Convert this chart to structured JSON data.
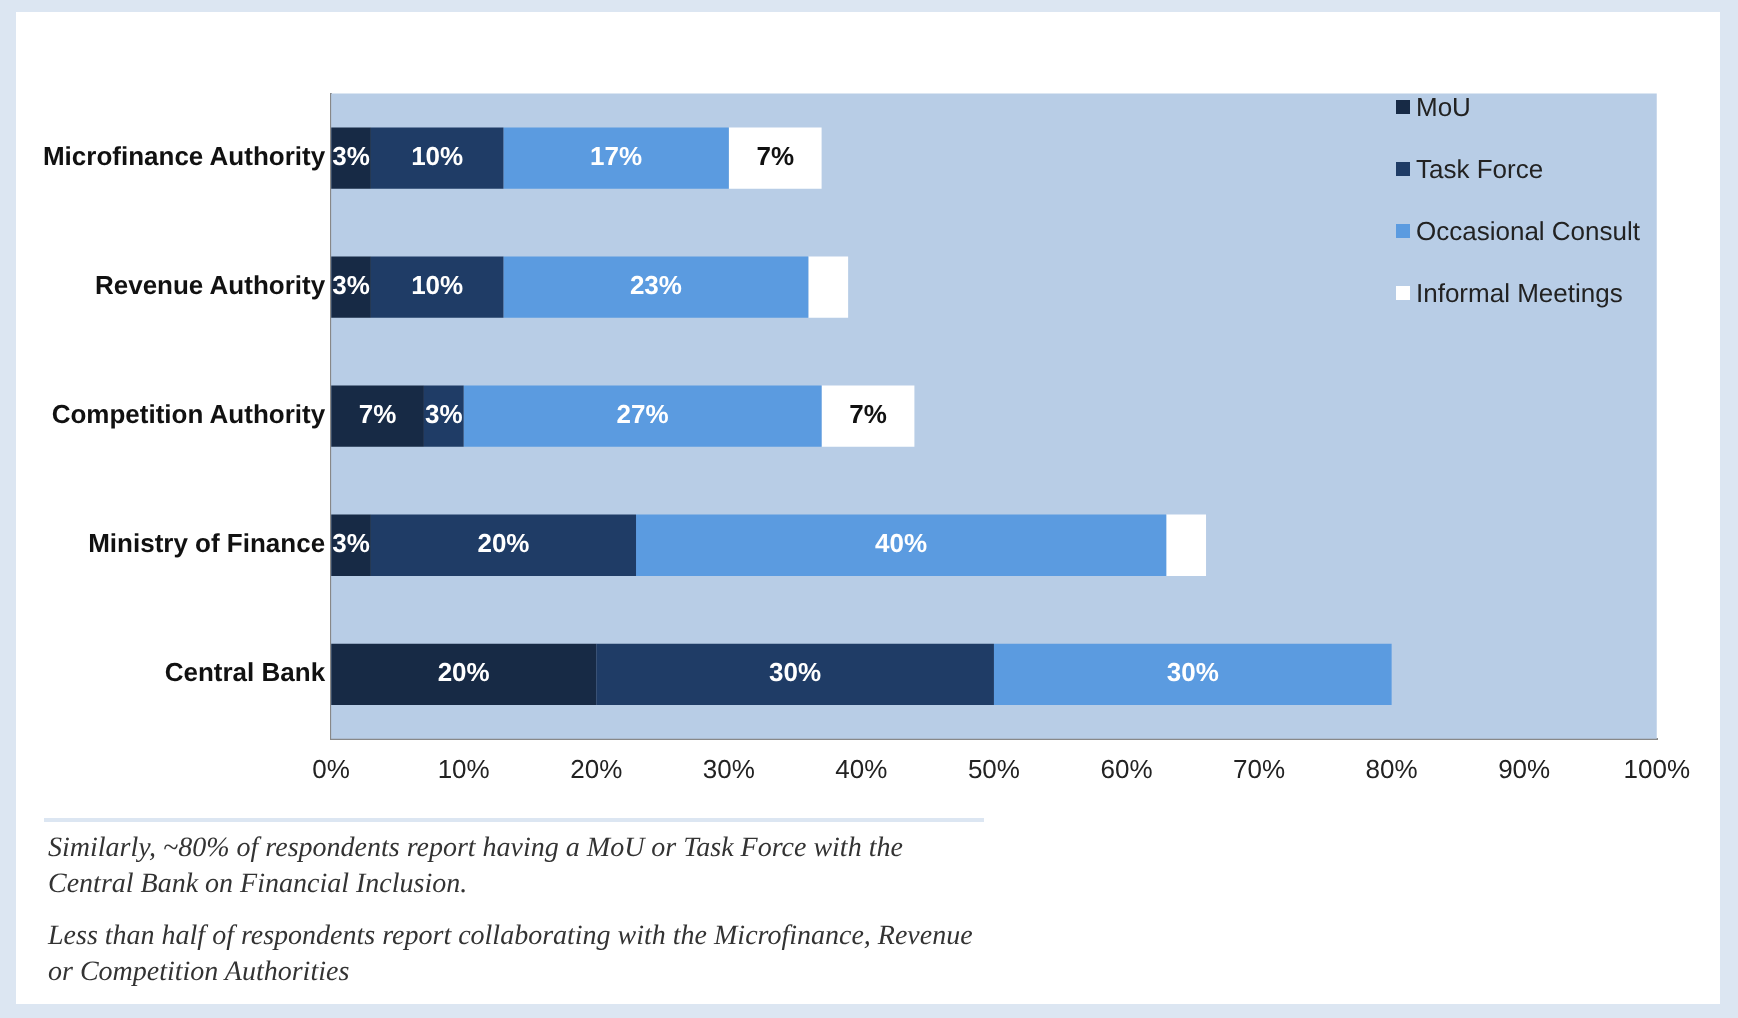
{
  "chart_data": {
    "type": "bar",
    "orientation": "horizontal",
    "stacked": true,
    "categories": [
      "Microfinance Authority",
      "Revenue Authority",
      "Competition Authority",
      "Ministry of Finance",
      "Central Bank"
    ],
    "series": [
      {
        "name": "MoU",
        "color": "#172a45",
        "values": [
          3,
          3,
          7,
          3,
          20
        ],
        "value_labels": [
          "3%",
          "3%",
          "7%",
          "3%",
          "20%"
        ]
      },
      {
        "name": "Task Force",
        "color": "#1f3c66",
        "values": [
          10,
          10,
          3,
          20,
          30
        ],
        "value_labels": [
          "10%",
          "10%",
          "3%",
          "20%",
          "30%"
        ]
      },
      {
        "name": "Occasional Consult",
        "color": "#5b9be0",
        "values": [
          17,
          23,
          27,
          40,
          30
        ],
        "value_labels": [
          "17%",
          "23%",
          "27%",
          "40%",
          "30%"
        ]
      },
      {
        "name": "Informal Meetings",
        "color": "#ffffff",
        "values": [
          7,
          3,
          7,
          3,
          0
        ],
        "value_labels": [
          "7%",
          null,
          "7%",
          null,
          null
        ]
      }
    ],
    "xlim": [
      0,
      100
    ],
    "xticks": [
      {
        "value": 0,
        "label": "0%"
      },
      {
        "value": 10,
        "label": "10%"
      },
      {
        "value": 20,
        "label": "20%"
      },
      {
        "value": 30,
        "label": "30%"
      },
      {
        "value": 40,
        "label": "40%"
      },
      {
        "value": 50,
        "label": "50%"
      },
      {
        "value": 60,
        "label": "60%"
      },
      {
        "value": 70,
        "label": "70%"
      },
      {
        "value": 80,
        "label": "80%"
      },
      {
        "value": 90,
        "label": "90%"
      },
      {
        "value": 100,
        "label": "100%"
      }
    ],
    "grid": false,
    "legend": "top right",
    "annotations": [
      "Similarly, ~80% of respondents report having a MoU or Task Force with the Central Bank on Financial Inclusion.",
      "Less than half of respondents report collaborating with the Microfinance,  Revenue or Competition Authorities"
    ]
  }
}
